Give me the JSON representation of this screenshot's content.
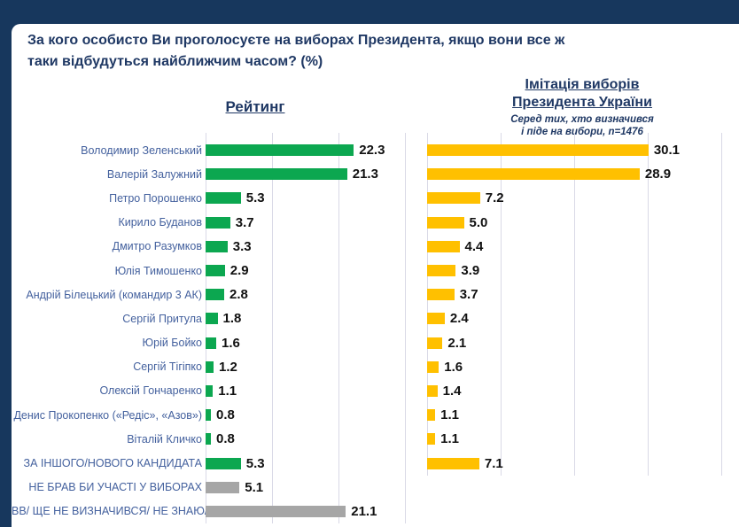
{
  "window": {
    "title_line1": "За кого особисто Ви проголосуєте на виборах Президента, якщо вони все ж",
    "title_line2": "таки відбудуться найближчим часом? (%)"
  },
  "left_chart": {
    "header": "Рейтинг"
  },
  "right_chart": {
    "header_line1": "Імітація виборів",
    "header_line2": "Президента України",
    "subtitle_line1": "Серед тих, хто визначився",
    "subtitle_line2": "і піде на вибори, n=1476"
  },
  "colors": {
    "navy": "#17375D",
    "title_text": "#1F3864",
    "green": "#0CA750",
    "yellow": "#FFC000",
    "gray": "#A6A6A6",
    "label_blue": "#44619E",
    "gridline": "#D9D9E6",
    "value_text": "#111111"
  },
  "chart_data": {
    "type": "bar",
    "orientation": "horizontal",
    "grid": true,
    "legend": false,
    "value_label_format": "one_decimal",
    "categories": [
      "Володимир Зеленський",
      "Валерій Залужний",
      "Петро Порошенко",
      "Кирило Буданов",
      "Дмитро Разумков",
      "Юлія Тимошенко",
      "Андрій Білецький (командир 3 АК)",
      "Сергій Притула",
      "Юрій Бойко",
      "Сергій Тігіпко",
      "Олексій Гончаренко",
      "Денис Прокопенко («Редіс», «Азов»)",
      "Віталій Кличко",
      "ЗА ІНШОГО/НОВОГО КАНДИДАТА",
      "НЕ БРАВ БИ УЧАСТІ У ВИБОРАХ",
      "ВВ/ ЩЕ НЕ ВИЗНАЧИВСЯ/ НЕ ЗНАЮ/..."
    ],
    "series": [
      {
        "name": "Рейтинг",
        "xlim": [
          0,
          31
        ],
        "gridline_interval": 10,
        "values": [
          22.3,
          21.3,
          5.3,
          3.7,
          3.3,
          2.9,
          2.8,
          1.8,
          1.6,
          1.2,
          1.1,
          0.8,
          0.8,
          5.3,
          5.1,
          21.1
        ],
        "bar_colors": [
          "green",
          "green",
          "green",
          "green",
          "green",
          "green",
          "green",
          "green",
          "green",
          "green",
          "green",
          "green",
          "green",
          "green",
          "gray",
          "gray"
        ]
      },
      {
        "name": "Імітація виборів Президента України",
        "subset_note": "Серед тих, хто визначився і піде на вибори, n=1476",
        "xlim": [
          0,
          40
        ],
        "gridline_interval": 10,
        "values": [
          30.1,
          28.9,
          7.2,
          5.0,
          4.4,
          3.9,
          3.7,
          2.4,
          2.1,
          1.6,
          1.4,
          1.1,
          1.1,
          7.1,
          null,
          null
        ],
        "bar_colors": [
          "yellow",
          "yellow",
          "yellow",
          "yellow",
          "yellow",
          "yellow",
          "yellow",
          "yellow",
          "yellow",
          "yellow",
          "yellow",
          "yellow",
          "yellow",
          "yellow",
          null,
          null
        ]
      }
    ]
  }
}
